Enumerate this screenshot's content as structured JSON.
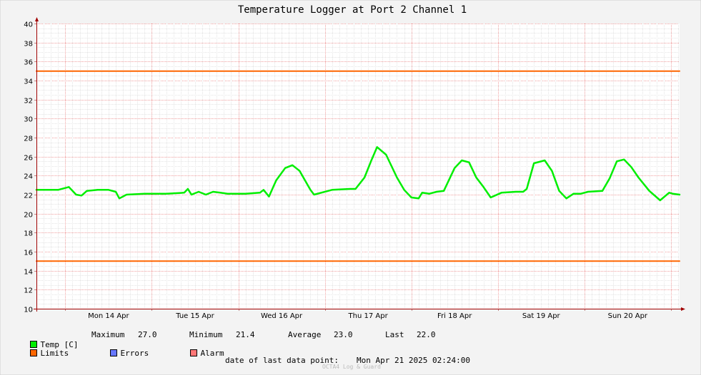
{
  "chart_data": {
    "type": "line",
    "title": "Temperature Logger at Port 2 Channel 1",
    "ylim": [
      10,
      40
    ],
    "yticks": [
      10,
      12,
      14,
      16,
      18,
      20,
      22,
      24,
      26,
      28,
      30,
      32,
      34,
      36,
      38,
      40
    ],
    "xlim": [
      "2025-04-13 16:00",
      "2025-04-21 02:24"
    ],
    "day_labels": [
      {
        "label": "Mon 14 Apr",
        "at": "2025-04-14 12:00"
      },
      {
        "label": "Tue 15 Apr",
        "at": "2025-04-15 12:00"
      },
      {
        "label": "Wed 16 Apr",
        "at": "2025-04-16 12:00"
      },
      {
        "label": "Thu 17 Apr",
        "at": "2025-04-17 12:00"
      },
      {
        "label": "Fri 18 Apr",
        "at": "2025-04-18 12:00"
      },
      {
        "label": "Sat 19 Apr",
        "at": "2025-04-19 12:00"
      },
      {
        "label": "Sun 20 Apr",
        "at": "2025-04-20 12:00"
      }
    ],
    "grid": true,
    "series": [
      {
        "name": "Temp [C]",
        "color": "#00ee00",
        "x": [
          "2025-04-13 16:00",
          "2025-04-13 22:00",
          "2025-04-14 01:00",
          "2025-04-14 03:00",
          "2025-04-14 04:30",
          "2025-04-14 06:00",
          "2025-04-14 09:00",
          "2025-04-14 12:00",
          "2025-04-14 14:00",
          "2025-04-14 15:00",
          "2025-04-14 17:00",
          "2025-04-14 22:00",
          "2025-04-15 04:00",
          "2025-04-15 09:00",
          "2025-04-15 10:00",
          "2025-04-15 11:00",
          "2025-04-15 13:00",
          "2025-04-15 15:00",
          "2025-04-15 17:00",
          "2025-04-15 19:00",
          "2025-04-15 21:00",
          "2025-04-16 02:00",
          "2025-04-16 06:00",
          "2025-04-16 07:00",
          "2025-04-16 08:30",
          "2025-04-16 10:30",
          "2025-04-16 13:00",
          "2025-04-16 15:00",
          "2025-04-16 17:00",
          "2025-04-16 20:00",
          "2025-04-16 21:00",
          "2025-04-17 02:00",
          "2025-04-17 07:00",
          "2025-04-17 08:30",
          "2025-04-17 11:00",
          "2025-04-17 13:00",
          "2025-04-17 14:30",
          "2025-04-17 17:00",
          "2025-04-17 20:00",
          "2025-04-17 22:00",
          "2025-04-18 00:00",
          "2025-04-18 02:00",
          "2025-04-18 03:00",
          "2025-04-18 05:00",
          "2025-04-18 07:00",
          "2025-04-18 09:00",
          "2025-04-18 12:00",
          "2025-04-18 14:00",
          "2025-04-18 16:00",
          "2025-04-18 18:00",
          "2025-04-18 20:00",
          "2025-04-18 22:00",
          "2025-04-19 01:00",
          "2025-04-19 05:00",
          "2025-04-19 07:00",
          "2025-04-19 08:00",
          "2025-04-19 10:00",
          "2025-04-19 13:00",
          "2025-04-19 15:00",
          "2025-04-19 17:00",
          "2025-04-19 19:00",
          "2025-04-19 21:00",
          "2025-04-19 23:00",
          "2025-04-20 01:00",
          "2025-04-20 05:00",
          "2025-04-20 07:00",
          "2025-04-20 09:00",
          "2025-04-20 11:00",
          "2025-04-20 13:00",
          "2025-04-20 15:00",
          "2025-04-20 18:00",
          "2025-04-20 21:00",
          "2025-04-20 23:30",
          "2025-04-21 00:30",
          "2025-04-21 02:24"
        ],
        "y": [
          22.5,
          22.5,
          22.8,
          22.0,
          21.9,
          22.4,
          22.5,
          22.5,
          22.3,
          21.6,
          22.0,
          22.1,
          22.1,
          22.2,
          22.6,
          22.0,
          22.3,
          22.0,
          22.3,
          22.2,
          22.1,
          22.1,
          22.2,
          22.5,
          21.8,
          23.5,
          24.8,
          25.1,
          24.5,
          22.5,
          22.0,
          22.5,
          22.6,
          22.6,
          23.8,
          25.7,
          27.0,
          26.2,
          23.8,
          22.5,
          21.7,
          21.6,
          22.2,
          22.1,
          22.3,
          22.4,
          24.8,
          25.6,
          25.4,
          23.8,
          22.8,
          21.7,
          22.2,
          22.3,
          22.3,
          22.6,
          25.3,
          25.6,
          24.5,
          22.4,
          21.6,
          22.1,
          22.1,
          22.3,
          22.4,
          23.7,
          25.5,
          25.7,
          24.9,
          23.8,
          22.4,
          21.4,
          22.2,
          22.1,
          22.0
        ]
      },
      {
        "name": "Limits",
        "color": "#ff6600",
        "x": [
          "2025-04-13 16:00",
          "2025-04-21 02:24"
        ],
        "y": [
          35.0,
          35.0
        ]
      },
      {
        "name": "Limits",
        "color": "#ff6600",
        "x": [
          "2025-04-13 16:00",
          "2025-04-21 02:24"
        ],
        "y": [
          15.0,
          15.0
        ]
      }
    ]
  },
  "legend": {
    "temp": {
      "label": "Temp [C]",
      "color": "#00ee00"
    },
    "limits": {
      "label": "Limits",
      "color": "#ff6600"
    },
    "errors": {
      "label": "Errors",
      "color": "#6677ff"
    },
    "alarm": {
      "label": "Alarm",
      "color": "#ff7777"
    },
    "maximum_label": "Maximum",
    "maximum_value": "27.0",
    "minimum_label": "Minimum",
    "minimum_value": "21.4",
    "average_label": "Average",
    "average_value": "23.0",
    "last_label": "Last",
    "last_value": "22.0"
  },
  "footer": {
    "last_point_label": "date of last data point:",
    "last_point_value": "Mon Apr 21 2025 02:24:00",
    "watermark": "OCTA4 Log & Guard"
  }
}
